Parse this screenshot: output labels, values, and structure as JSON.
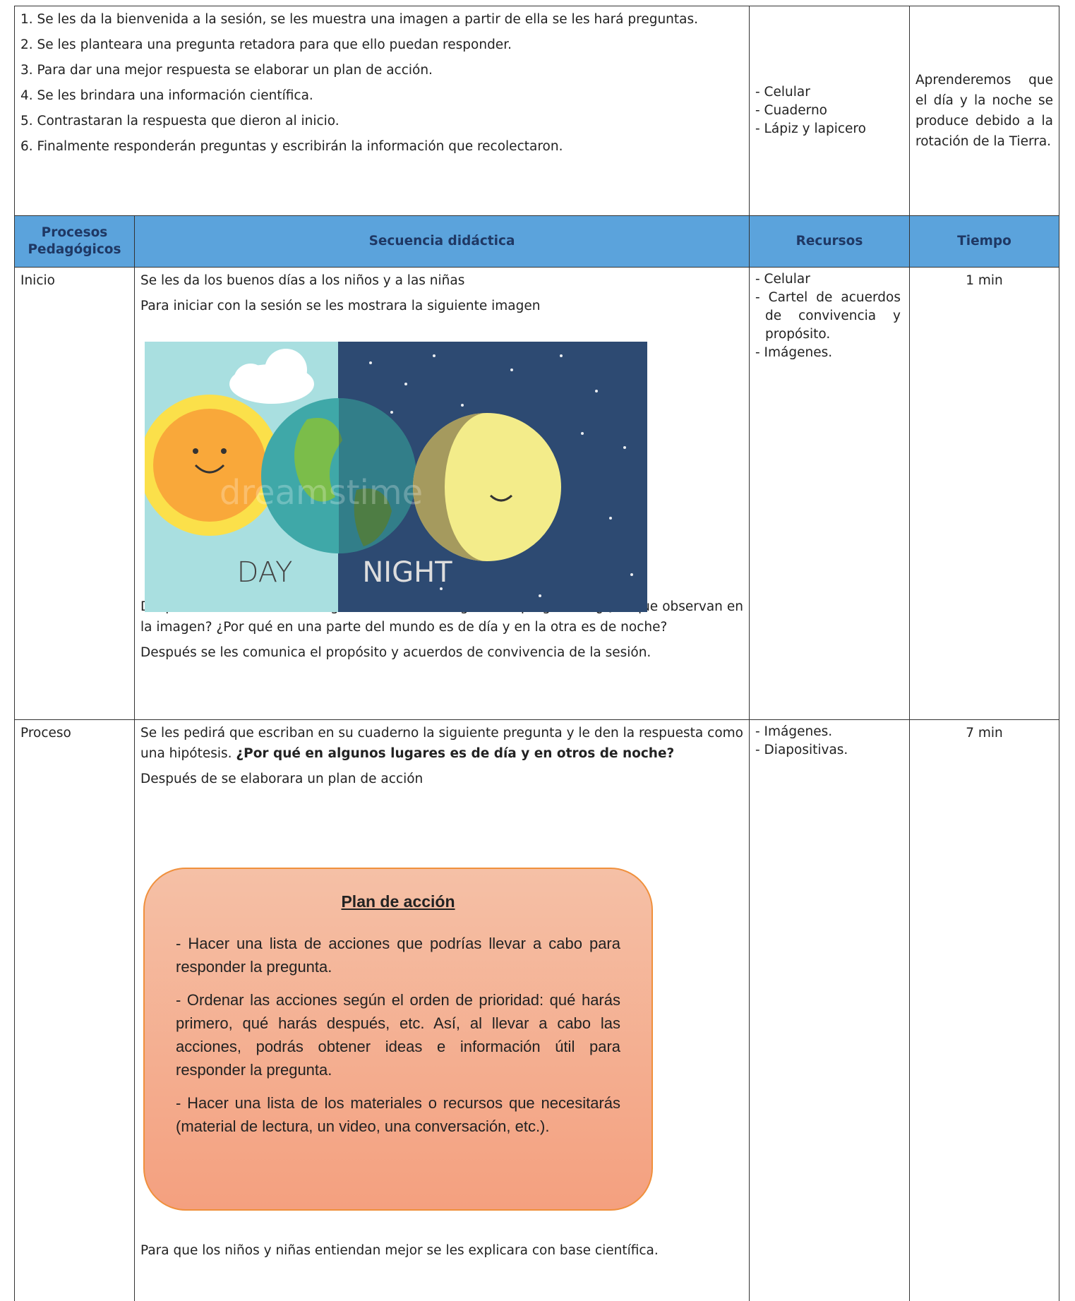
{
  "objectives": {
    "steps": [
      "1. Se les da la bienvenida a la sesión, se les muestra una imagen a partir de ella se les hará preguntas.",
      "2. Se les planteara una pregunta retadora para que ello puedan responder.",
      "3. Para dar una mejor respuesta se elaborar un plan de acción.",
      "4. Se les brindara una información científica.",
      "5. Contrastaran la respuesta que dieron al inicio.",
      "6. Finalmente responderán preguntas y escribirán la información que recolectaron."
    ],
    "resources": [
      "- Celular",
      "- Cuaderno",
      "- Lápiz y lapicero"
    ],
    "purpose": "Aprenderemos que el día y la noche se produce debido a la rotación de la Tierra."
  },
  "table": {
    "headers": [
      "Procesos Pedagógicos",
      "Secuencia didáctica",
      "Recursos",
      "Tiempo"
    ],
    "rows": [
      {
        "process": "Inicio",
        "greeting": "Se les da los buenos días a los niños y a las niñas",
        "image_intro": "Para iniciar con la sesión se les mostrara la siguiente imagen",
        "image": {
          "watermark": "dreamstime",
          "day": "DAY",
          "night": "NIGHT"
        },
        "questions": "Después de observar las imágenes se hará las siguientes preguntas: ¿Qué que observan en la imagen? ¿Por qué en una parte del mundo es de día y en la otra es de noche?",
        "purpose": "Después se les comunica el propósito y acuerdos de convivencia de la sesión.",
        "resources": [
          "- Celular",
          "- Cartel de acuerdos de convivencia y propósito.",
          "- Imágenes."
        ],
        "time": "1 min"
      },
      {
        "process": "Proceso",
        "question_intro": "Se les pedirá que escriban en su cuaderno la siguiente pregunta y le den la respuesta como una hipótesis. ",
        "question": "¿Por qué en algunos lugares es de día y en otros de noche?",
        "plan_intro": "Después de se elaborara un plan de acción",
        "plan": {
          "title": "Plan de acción",
          "items": [
            "- Hacer una lista de acciones que podrías llevar a cabo para responder la pregunta.",
            "- Ordenar las acciones según el orden de prioridad: qué harás primero, qué harás después, etc. Así, al llevar a cabo las acciones, podrás obtener ideas e información útil para responder la pregunta.",
            "- Hacer una lista de los materiales o recursos que necesitarás (material de lectura, un video, una conversación, etc.)."
          ]
        },
        "closing": "Para que los niños y niñas entiendan mejor se les explicara con base científica.",
        "resources": [
          "- Imágenes.",
          "- Diapositivas."
        ],
        "time": "7 min"
      }
    ]
  }
}
